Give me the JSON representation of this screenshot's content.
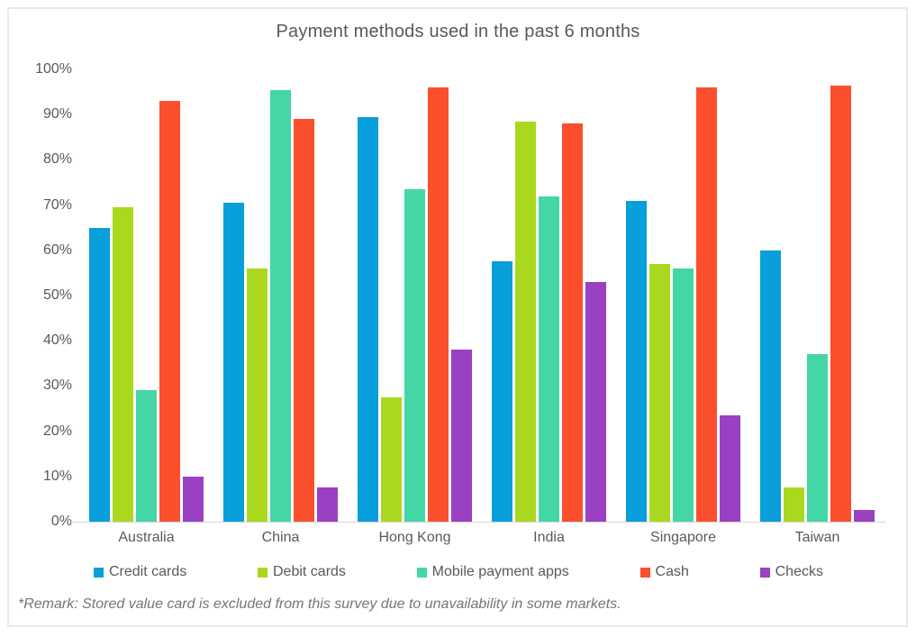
{
  "footnote": "*Remark: Stored value card is excluded from this survey due to unavailability in some markets.",
  "chart_data": {
    "type": "bar",
    "title": "Payment methods used in the past 6 months",
    "categories": [
      "Australia",
      "China",
      "Hong Kong",
      "India",
      "Singapore",
      "Taiwan"
    ],
    "series": [
      {
        "name": "Credit cards",
        "color": "#089fda",
        "values": [
          65,
          70.5,
          89.5,
          57.5,
          71,
          60
        ]
      },
      {
        "name": "Debit cards",
        "color": "#aad81e",
        "values": [
          69.5,
          56,
          27.5,
          88.5,
          57,
          7.5
        ]
      },
      {
        "name": "Mobile payment apps",
        "color": "#45d6a5",
        "values": [
          29,
          95.5,
          73.5,
          72,
          56,
          37
        ]
      },
      {
        "name": "Cash",
        "color": "#fc4f2e",
        "values": [
          93,
          89,
          96,
          88,
          96,
          96.5
        ]
      },
      {
        "name": "Checks",
        "color": "#9a40c2",
        "values": [
          10,
          7.5,
          38,
          53,
          23.5,
          2.5
        ]
      }
    ],
    "y_ticks": [
      "0%",
      "10%",
      "20%",
      "30%",
      "40%",
      "50%",
      "60%",
      "70%",
      "80%",
      "90%",
      "100%"
    ],
    "ylim": [
      0,
      100
    ],
    "grid": false,
    "legend_position": "bottom",
    "axis_color": "#d6d6d6",
    "text_color": "#595959"
  }
}
